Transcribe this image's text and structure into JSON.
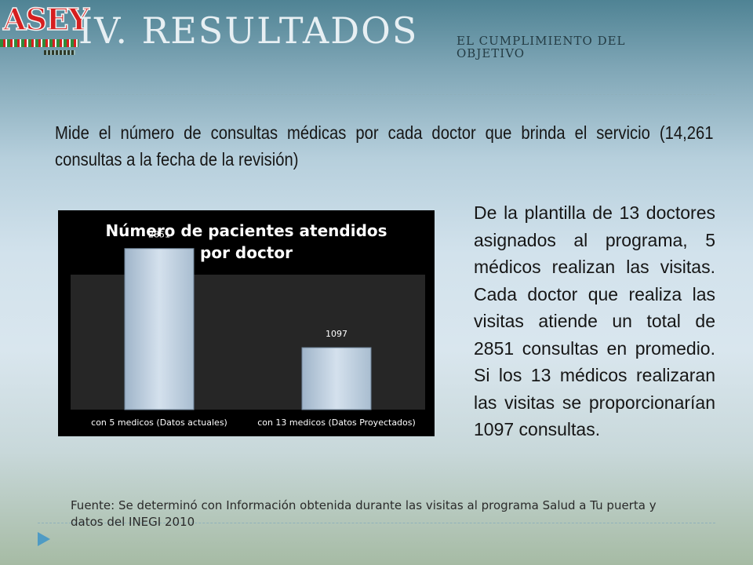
{
  "header": {
    "logo_text": "ASEY",
    "title": "IV. RESULTADOS",
    "subtitle": "EL CUMPLIMIENTO DEL OBJETIVO"
  },
  "intro_text": "Mide el número de consultas médicas por cada doctor que brinda el servicio (14,261 consultas a la fecha de la revisión)",
  "chart_data": {
    "type": "bar",
    "title_line1": "Número de pacientes atendidos",
    "title_line2": "por doctor",
    "categories": [
      "con 5 medicos (Datos actuales)",
      "con 13 medicos (Datos Proyectados)"
    ],
    "values": [
      2851,
      1097
    ],
    "data_labels": [
      "2851",
      "1097"
    ],
    "xlabel": "",
    "ylabel": "",
    "ylim": [
      0,
      3000
    ],
    "grid": false,
    "legend": "none",
    "colors": {
      "bar": "#c7d6e6",
      "background": "#000000",
      "text": "#ffffff",
      "plot_area": "#2a2a2a"
    }
  },
  "body_text": "De la plantilla de 13 doctores asignados al programa, 5 médicos realizan las visitas. Cada doctor que realiza las visitas  atiende un total de 2851 consultas en promedio. Si los 13 médicos realizaran las visitas se proporcionarían 1097 consultas.",
  "source_text": "Fuente: Se determinó con Información obtenida durante las visitas al programa Salud a Tu puerta y datos del INEGI 2010"
}
